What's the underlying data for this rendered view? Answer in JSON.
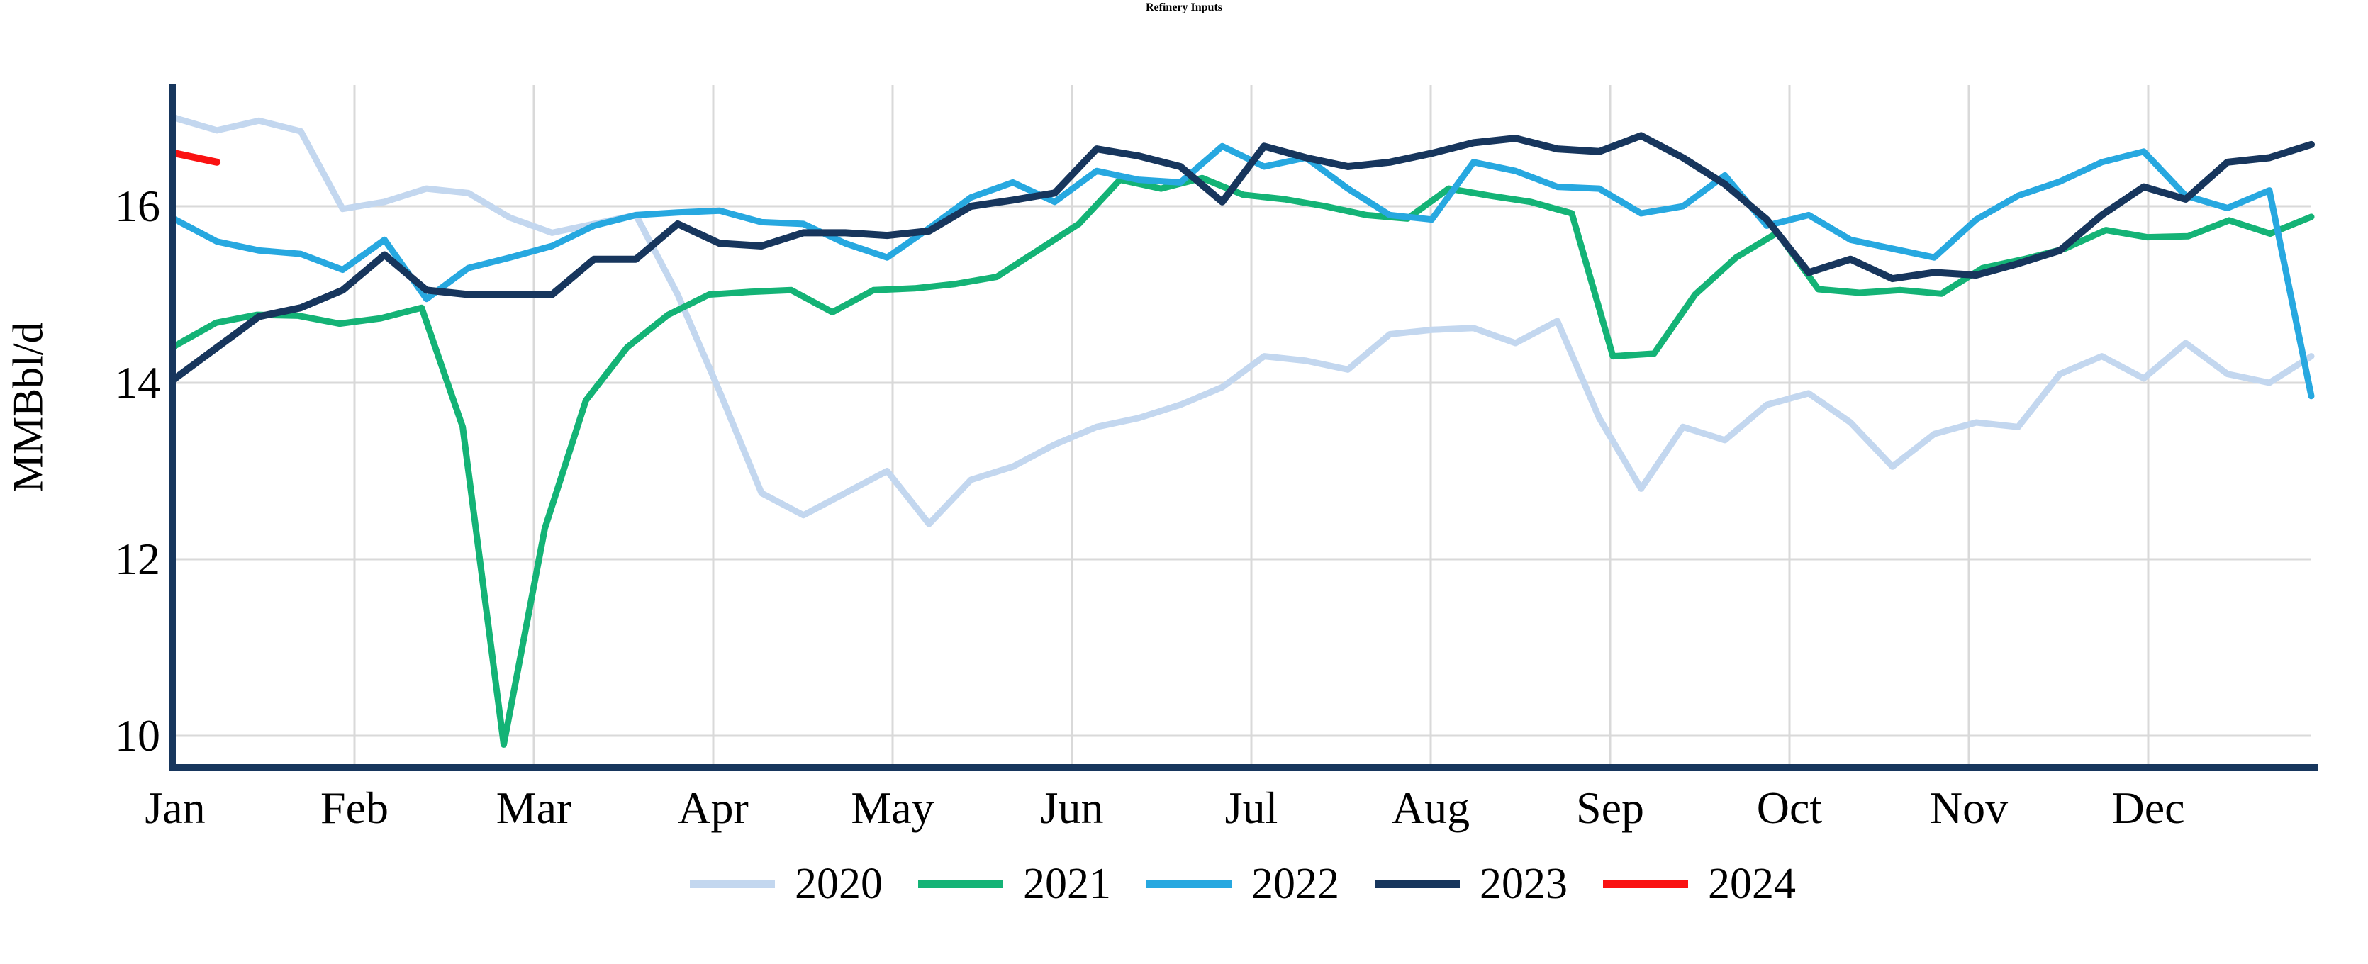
{
  "title": "Refinery Inputs",
  "y_axis": {
    "label": "MMBbl/d",
    "ticks": [
      16,
      14,
      12,
      10
    ]
  },
  "x_axis": {
    "months": [
      "Jan",
      "Feb",
      "Mar",
      "Apr",
      "May",
      "Jun",
      "Jul",
      "Aug",
      "Sep",
      "Oct",
      "Nov",
      "Dec"
    ]
  },
  "colors": {
    "axis": "#17365d",
    "gridline": "#d9d9d9",
    "background": "#ffffff"
  },
  "chart_data": {
    "type": "line",
    "title": "Refinery Inputs",
    "xlabel": "",
    "ylabel": "MMBbl/d",
    "x_unit": "weeks of year, Jan through Dec",
    "ylim": [
      9.6,
      17.4
    ],
    "yticks": [
      16,
      14,
      12,
      10
    ],
    "grid": true,
    "legend_position": "bottom-center",
    "series": [
      {
        "name": "2020",
        "color": "#c3d7ef",
        "line_width": 9,
        "values": [
          17.0,
          16.86,
          16.97,
          16.85,
          15.97,
          16.05,
          16.2,
          16.15,
          15.87,
          15.7,
          15.8,
          15.9,
          15.0,
          13.9,
          12.75,
          12.5,
          12.75,
          13.0,
          12.4,
          12.9,
          13.05,
          13.3,
          13.5,
          13.6,
          13.75,
          13.95,
          14.3,
          14.25,
          14.15,
          14.55,
          14.6,
          14.62,
          14.45,
          14.7,
          13.6,
          12.8,
          13.5,
          13.35,
          13.75,
          13.88,
          13.55,
          13.05,
          13.42,
          13.55,
          13.5,
          14.1,
          14.3,
          14.05,
          14.45,
          14.1,
          14.0,
          14.3
        ]
      },
      {
        "name": "2021",
        "color": "#14b376",
        "line_width": 9,
        "values": [
          14.42,
          14.68,
          14.77,
          14.76,
          14.67,
          14.73,
          14.85,
          13.5,
          9.9,
          12.35,
          13.8,
          14.4,
          14.77,
          15.0,
          15.03,
          15.05,
          14.8,
          15.05,
          15.07,
          15.12,
          15.2,
          15.5,
          15.8,
          16.3,
          16.2,
          16.32,
          16.13,
          16.08,
          16.0,
          15.9,
          15.86,
          16.2,
          16.12,
          16.05,
          15.92,
          14.3,
          14.33,
          15.0,
          15.42,
          15.7,
          15.06,
          15.02,
          15.05,
          15.01,
          15.3,
          15.4,
          15.52,
          15.73,
          15.65,
          15.66,
          15.84,
          15.69,
          15.88
        ]
      },
      {
        "name": "2022",
        "color": "#27a8e0",
        "line_width": 9,
        "values": [
          15.85,
          15.6,
          15.5,
          15.46,
          15.28,
          15.62,
          14.95,
          15.3,
          15.42,
          15.55,
          15.78,
          15.9,
          15.93,
          15.95,
          15.82,
          15.8,
          15.58,
          15.42,
          15.75,
          16.1,
          16.27,
          16.05,
          16.4,
          16.3,
          16.27,
          16.68,
          16.45,
          16.55,
          16.2,
          15.9,
          15.85,
          16.5,
          16.4,
          16.22,
          16.2,
          15.92,
          16.0,
          16.35,
          15.78,
          15.9,
          15.62,
          15.52,
          15.42,
          15.85,
          16.12,
          16.28,
          16.5,
          16.62,
          16.12,
          15.98,
          16.18,
          13.85
        ]
      },
      {
        "name": "2023",
        "color": "#17365d",
        "line_width": 10,
        "values": [
          14.05,
          14.4,
          14.75,
          14.85,
          15.05,
          15.45,
          15.05,
          15.0,
          15.0,
          15.0,
          15.4,
          15.4,
          15.8,
          15.58,
          15.55,
          15.7,
          15.7,
          15.67,
          15.72,
          16.0,
          16.07,
          16.15,
          16.65,
          16.57,
          16.45,
          16.05,
          16.68,
          16.55,
          16.45,
          16.5,
          16.6,
          16.72,
          16.77,
          16.65,
          16.62,
          16.8,
          16.55,
          16.25,
          15.85,
          15.25,
          15.4,
          15.18,
          15.25,
          15.22,
          15.35,
          15.5,
          15.9,
          16.22,
          16.08,
          16.5,
          16.55,
          16.7
        ]
      },
      {
        "name": "2024",
        "color": "#fa1212",
        "line_width": 10,
        "values": [
          16.6,
          16.5
        ]
      }
    ]
  }
}
